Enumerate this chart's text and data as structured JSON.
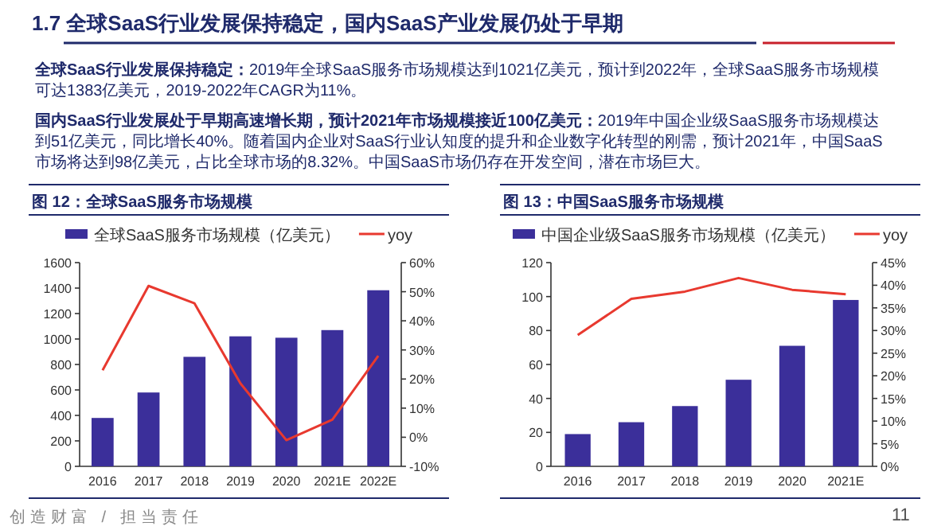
{
  "chart_data": [
    {
      "type": "other",
      "title": "1.7 全球SaaS行业发展保持稳定，国内SaaS产业发展仍处于早期",
      "annotations": [
        "全球SaaS行业发展保持稳定：",
        "2019年全球SaaS服务市场规模达到1021亿美元，预计到2022年，全球SaaS服务市场规模可达1383亿美元，2019-2022年CAGR为11%。",
        "国内SaaS行业发展处于早期高速增长期，预计2021年市场规模接近100亿美元：",
        "2019年中国企业级SaaS服务市场规模达到51亿美元，同比增长40%。随着国内企业对SaaS行业认知度的提升和企业数字化转型的刚需，预计2021年，中国SaaS市场将达到98亿美元，占比全球市场的8.32%。中国SaaS市场仍存在开发空间，潜在市场巨大。",
        "创造财富 / 担当责任",
        "11"
      ]
    },
    {
      "type": "bar",
      "title": "图 12：全球SaaS服务市场规模",
      "categories": [
        "2016",
        "2017",
        "2018",
        "2019",
        "2020",
        "2021E",
        "2022E"
      ],
      "series": [
        {
          "name": "全球SaaS服务市场规模（亿美元）",
          "type": "bar",
          "color": "#3b2f9a",
          "values": [
            380,
            580,
            860,
            1021,
            1010,
            1070,
            1383
          ]
        },
        {
          "name": "yoy",
          "type": "line",
          "axis": "y2",
          "color": "#e8392f",
          "values": [
            23,
            52,
            46,
            18.5,
            -1,
            6,
            28
          ]
        }
      ],
      "ylim": [
        0,
        1600
      ],
      "yticks": [
        0,
        200,
        400,
        600,
        800,
        1000,
        1200,
        1400,
        1600
      ],
      "y2lim": [
        -10,
        60
      ],
      "y2ticks": [
        {
          "value": -10,
          "label": "-10%"
        },
        {
          "value": 0,
          "label": "0%"
        },
        {
          "value": 10,
          "label": "10%"
        },
        {
          "value": 20,
          "label": "20%"
        },
        {
          "value": 30,
          "label": "30%"
        },
        {
          "value": 40,
          "label": "40%"
        },
        {
          "value": 50,
          "label": "50%"
        },
        {
          "value": 60,
          "label": "60%"
        }
      ],
      "legend": "top",
      "grid": false
    },
    {
      "type": "bar",
      "title": "图 13：中国SaaS服务市场规模",
      "categories": [
        "2016",
        "2017",
        "2018",
        "2019",
        "2020",
        "2021E"
      ],
      "series": [
        {
          "name": "中国企业级SaaS服务市场规模（亿美元）",
          "type": "bar",
          "color": "#3b2f9a",
          "values": [
            19,
            26,
            35.5,
            51,
            71,
            98
          ]
        },
        {
          "name": "yoy",
          "type": "line",
          "axis": "y2",
          "color": "#e8392f",
          "values": [
            29,
            37,
            38.6,
            41.6,
            39,
            38
          ]
        }
      ],
      "ylim": [
        0,
        120
      ],
      "yticks": [
        0,
        20,
        40,
        60,
        80,
        100,
        120
      ],
      "y2lim": [
        0,
        45
      ],
      "y2ticks": [
        {
          "value": 0,
          "label": "0%"
        },
        {
          "value": 5,
          "label": "5%"
        },
        {
          "value": 10,
          "label": "10%"
        },
        {
          "value": 15,
          "label": "15%"
        },
        {
          "value": 20,
          "label": "20%"
        },
        {
          "value": 25,
          "label": "25%"
        },
        {
          "value": 30,
          "label": "30%"
        },
        {
          "value": 35,
          "label": "35%"
        },
        {
          "value": 40,
          "label": "40%"
        },
        {
          "value": 45,
          "label": "45%"
        }
      ],
      "legend": "top",
      "grid": false
    }
  ]
}
